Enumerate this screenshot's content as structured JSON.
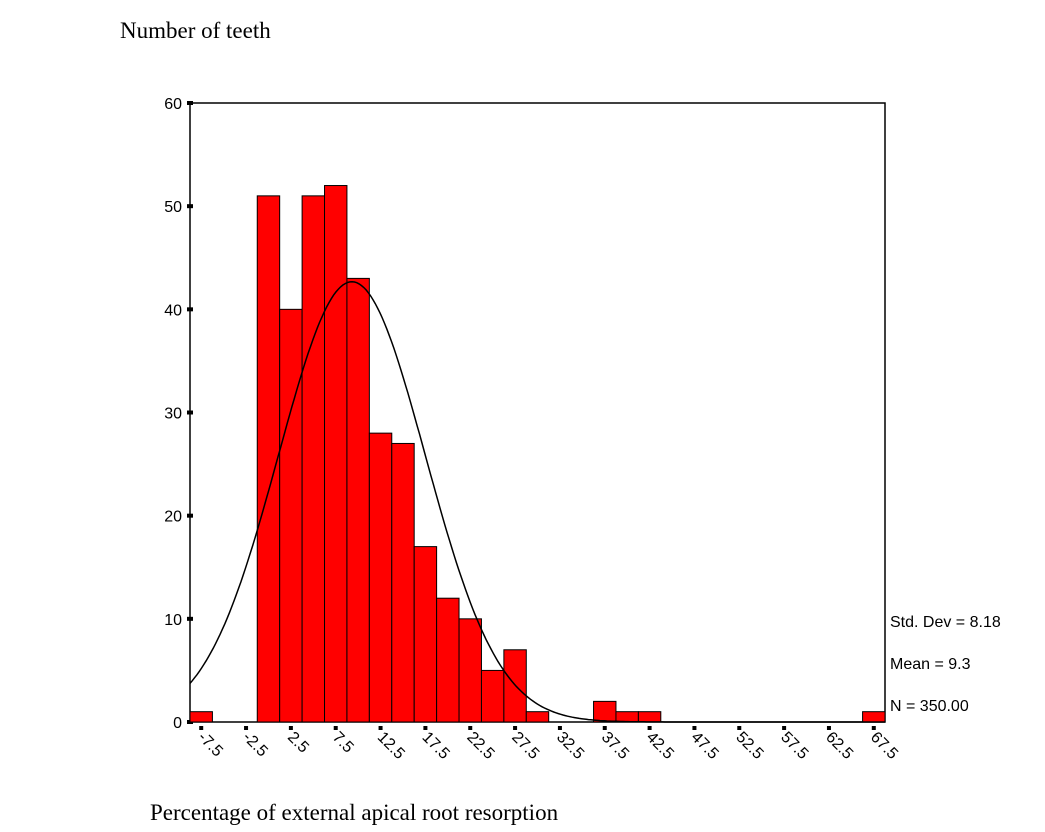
{
  "chart_data": {
    "type": "histogram",
    "ylabel": "Number of teeth",
    "xlabel": "Percentage of external apical root resorption",
    "bins": [
      -8.75,
      -6.25,
      -3.75,
      -1.25,
      1.25,
      3.75,
      6.25,
      8.75,
      11.25,
      13.75,
      16.25,
      18.75,
      21.25,
      23.75,
      26.25,
      28.75,
      31.25,
      33.75,
      36.25,
      38.75,
      41.25,
      43.75,
      46.25,
      48.75,
      51.25,
      53.75,
      56.25,
      58.75,
      61.25,
      63.75,
      66.25,
      68.75
    ],
    "counts": [
      1,
      0,
      0,
      51,
      40,
      51,
      52,
      43,
      28,
      27,
      17,
      12,
      10,
      5,
      7,
      1,
      0,
      0,
      2,
      1,
      1,
      0,
      0,
      0,
      0,
      0,
      0,
      0,
      0,
      0,
      1
    ],
    "color": "#ff0000",
    "xlim": [
      -8.75,
      68.75
    ],
    "xticks": [
      -7.5,
      -2.5,
      2.5,
      7.5,
      12.5,
      17.5,
      22.5,
      27.5,
      32.5,
      37.5,
      42.5,
      47.5,
      52.5,
      57.5,
      62.5,
      67.5
    ],
    "ylim": [
      0,
      60
    ],
    "yticks": [
      0,
      10,
      20,
      30,
      40,
      50,
      60
    ],
    "stats": [
      {
        "value": 8.18,
        "label": "Std. Dev = 8.18"
      },
      {
        "value": 9.3,
        "label": "Mean = 9.3"
      },
      {
        "value": 350,
        "label": "N = 350.00"
      }
    ],
    "normal_curve": true
  }
}
